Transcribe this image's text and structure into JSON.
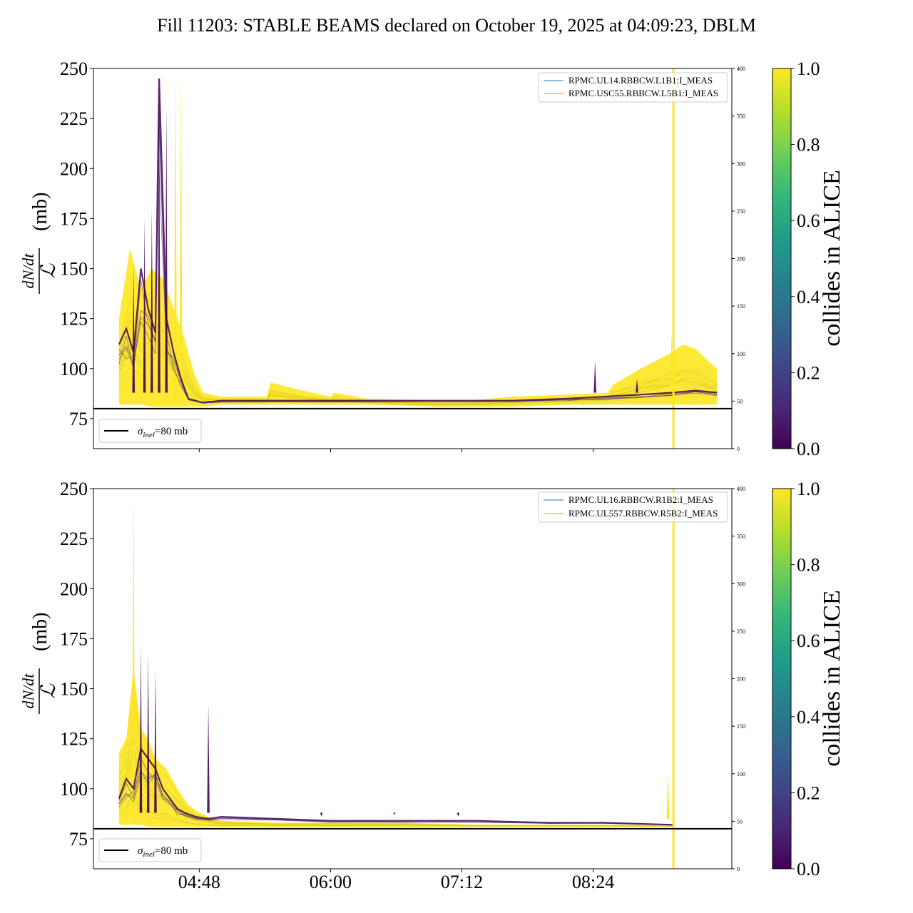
{
  "title": "Fill 11203: STABLE BEAMS declared on October 19, 2025 at 04:09:23, DBLM",
  "colors": {
    "viridis": [
      "#440154",
      "#482878",
      "#3e4989",
      "#31688e",
      "#26828e",
      "#1f9e89",
      "#35b779",
      "#6ece58",
      "#b5de2b",
      "#fde725"
    ],
    "legend_blue": "#1f77b4",
    "legend_orange": "#ff7f0e",
    "legend_gold": "#d4a017",
    "sigma_line": "#000000"
  },
  "chart_data": [
    {
      "type": "line",
      "name": "top",
      "ylabel": {
        "numerator": "dN/dt",
        "denominator": "ℒ",
        "unit": "(mb)"
      },
      "ylim": [
        60,
        250
      ],
      "yticks": [
        "75",
        "100",
        "125",
        "150",
        "175",
        "200",
        "225",
        "250"
      ],
      "y2lim": [
        0,
        400
      ],
      "y2ticks": [
        "0",
        "50",
        "100",
        "150",
        "200",
        "250",
        "300",
        "350",
        "400"
      ],
      "xlim_minutes": [
        230,
        580
      ],
      "xticks": [
        {
          "min": 288,
          "label": ""
        },
        {
          "min": 360,
          "label": ""
        },
        {
          "min": 432,
          "label": ""
        },
        {
          "min": 504,
          "label": ""
        }
      ],
      "legend": [
        "RPMC.UL14.RBBCW.L1B1:I_MEAS",
        "RPMC.USC55.RBBCW.L5B1:I_MEAS"
      ],
      "sigma_legend": {
        "symbol": "σ",
        "sub": "inel",
        "text": "=80 mb"
      },
      "sigma_inel": 80,
      "colorbar": {
        "label": "collides in ALICE",
        "ticks": [
          "0.0",
          "0.2",
          "0.4",
          "0.6",
          "0.8",
          "1.0"
        ]
      },
      "yellow_envelope": {
        "x_minutes": [
          244,
          250,
          256,
          262,
          268,
          274,
          280,
          285,
          290,
          300,
          325,
          327,
          345,
          360,
          362,
          380,
          420,
          435,
          460,
          490,
          512,
          515,
          530,
          547,
          553,
          560,
          568,
          572
        ],
        "upper": [
          125,
          160,
          140,
          150,
          145,
          130,
          115,
          98,
          88,
          86,
          86,
          93,
          89,
          86,
          88,
          85,
          84,
          84,
          86,
          87,
          88,
          92,
          100,
          108,
          112,
          110,
          103,
          100
        ],
        "lower": [
          82,
          82,
          82,
          81,
          81,
          81,
          81,
          81,
          81,
          82,
          82,
          82,
          82,
          82,
          82,
          82,
          81,
          81,
          81,
          82,
          82,
          82,
          82,
          82,
          82,
          82,
          82,
          82
        ]
      },
      "yellow_spikes": [
        {
          "x": 275,
          "y": 250
        },
        {
          "x": 278,
          "y": 250
        },
        {
          "x": 547,
          "y": 118
        }
      ],
      "dark_trace": {
        "x_minutes": [
          244,
          248,
          252,
          256,
          260,
          264,
          266,
          270,
          274,
          278,
          282,
          290,
          300,
          325,
          360,
          400,
          436,
          460,
          490,
          510,
          530,
          547,
          560,
          572
        ],
        "y": [
          112,
          120,
          108,
          150,
          130,
          118,
          245,
          125,
          108,
          95,
          85,
          83,
          84,
          84,
          84,
          84,
          84,
          84,
          85,
          86,
          87,
          88,
          89,
          88
        ]
      },
      "dark_spikes": [
        {
          "x": 252,
          "y": 150
        },
        {
          "x": 258,
          "y": 175
        },
        {
          "x": 262,
          "y": 180
        },
        {
          "x": 266,
          "y": 245
        },
        {
          "x": 270,
          "y": 232
        },
        {
          "x": 505,
          "y": 104
        },
        {
          "x": 528,
          "y": 95
        }
      ],
      "yellow_vline_min": 548
    },
    {
      "type": "line",
      "name": "bottom",
      "ylabel": {
        "numerator": "dN/dt",
        "denominator": "ℒ",
        "unit": "(mb)"
      },
      "ylim": [
        60,
        250
      ],
      "yticks": [
        "75",
        "100",
        "125",
        "150",
        "175",
        "200",
        "225",
        "250"
      ],
      "y2lim": [
        0,
        400
      ],
      "y2ticks": [
        "0",
        "50",
        "100",
        "150",
        "200",
        "250",
        "300",
        "350",
        "400"
      ],
      "xlim_minutes": [
        230,
        580
      ],
      "xticks": [
        {
          "min": 288,
          "label": "04:48"
        },
        {
          "min": 360,
          "label": "06:00"
        },
        {
          "min": 432,
          "label": "07:12"
        },
        {
          "min": 504,
          "label": "08:24"
        }
      ],
      "legend": [
        "RPMC.UL16.RBBCW.R1B2:I_MEAS",
        "RPMC.UL557.RBBCW.R5B2:I_MEAS"
      ],
      "sigma_legend": {
        "symbol": "σ",
        "sub": "inel",
        "text": "=80 mb"
      },
      "sigma_inel": 80,
      "colorbar": {
        "label": "collides in ALICE",
        "ticks": [
          "0.0",
          "0.2",
          "0.4",
          "0.6",
          "0.8",
          "1.0"
        ]
      },
      "yellow_envelope": {
        "x_minutes": [
          244,
          248,
          252,
          256,
          260,
          264,
          270,
          276,
          282,
          288,
          293,
          300,
          330,
          360,
          400,
          440,
          480,
          510,
          548
        ],
        "upper": [
          118,
          125,
          160,
          130,
          125,
          115,
          110,
          100,
          92,
          88,
          86,
          84,
          83,
          83,
          83,
          82,
          82,
          82,
          82
        ],
        "lower": [
          82,
          82,
          82,
          82,
          81,
          81,
          81,
          81,
          81,
          81,
          81,
          81,
          81,
          81,
          81,
          81,
          81,
          81,
          81
        ]
      },
      "yellow_spikes": [
        {
          "x": 252,
          "y": 250
        },
        {
          "x": 545,
          "y": 108
        }
      ],
      "dark_trace": {
        "x_minutes": [
          244,
          248,
          252,
          256,
          260,
          264,
          268,
          272,
          276,
          280,
          286,
          293,
          300,
          330,
          360,
          400,
          440,
          480,
          510,
          548
        ],
        "y": [
          95,
          105,
          100,
          120,
          115,
          110,
          100,
          95,
          90,
          88,
          86,
          85,
          86,
          85,
          84,
          84,
          84,
          83,
          83,
          82
        ]
      },
      "dark_spikes": [
        {
          "x": 256,
          "y": 172
        },
        {
          "x": 260,
          "y": 168
        },
        {
          "x": 264,
          "y": 160
        },
        {
          "x": 293,
          "y": 142
        },
        {
          "x": 325,
          "y": 88
        },
        {
          "x": 355,
          "y": 86
        },
        {
          "x": 395,
          "y": 87
        },
        {
          "x": 430,
          "y": 86
        }
      ],
      "yellow_vline_min": 548
    }
  ]
}
